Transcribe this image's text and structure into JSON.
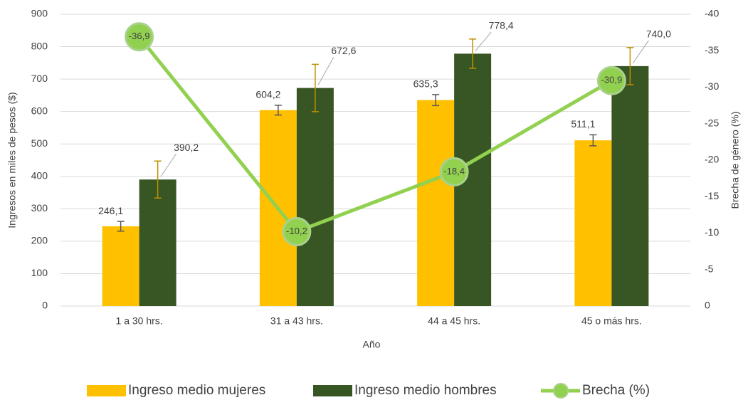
{
  "chart_data": {
    "type": "bar",
    "categories": [
      "1 a 30 hrs.",
      "31 a 43 hrs.",
      "44 a 45 hrs.",
      "45 o más hrs."
    ],
    "x_label": "Año",
    "y_label": "Ingresos en miles de pesos ($)",
    "y2_label": "Brecha de género (%)",
    "ylim": [
      0,
      900
    ],
    "yticks": [
      0,
      100,
      200,
      300,
      400,
      500,
      600,
      700,
      800,
      900
    ],
    "y2lim": [
      0,
      -40
    ],
    "y2ticks": [
      0,
      -5,
      -10,
      -15,
      -20,
      -25,
      -30,
      -35,
      -40
    ],
    "grid": true,
    "legend": "bottom",
    "series": [
      {
        "name": "Ingreso medio mujeres",
        "type": "bar",
        "color": "#ffc000",
        "error_color": "#595959",
        "values": [
          246.1,
          604.2,
          635.3,
          511.1
        ],
        "value_labels": [
          "246,1",
          "604,2",
          "635,3",
          "511,1"
        ],
        "errors": [
          15,
          15,
          17,
          17
        ]
      },
      {
        "name": "Ingreso medio hombres",
        "type": "bar",
        "color": "#375623",
        "error_color": "#bf9000",
        "values": [
          390.2,
          672.6,
          778.4,
          740.0
        ],
        "value_labels": [
          "390,2",
          "672,6",
          "778,4",
          "740,0"
        ],
        "errors": [
          57,
          73,
          45,
          57
        ]
      },
      {
        "name": "Brecha (%)",
        "type": "line",
        "axis": "y2",
        "color": "#92d050",
        "values": [
          -36.9,
          -10.2,
          -18.4,
          -30.9
        ],
        "value_labels": [
          "-36,9",
          "-10,2",
          "-18,4",
          "-30,9"
        ]
      }
    ]
  }
}
